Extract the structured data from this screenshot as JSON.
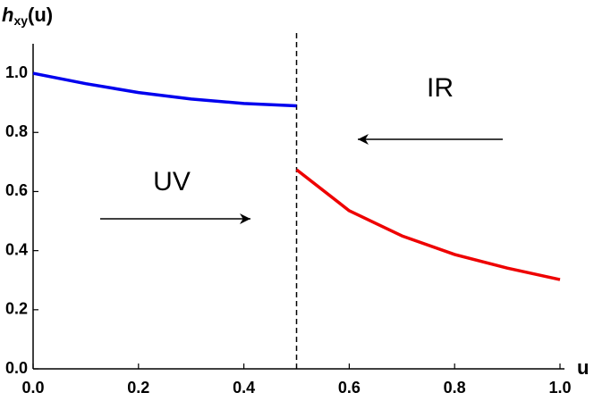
{
  "chart_data": {
    "type": "line",
    "ylabel": {
      "main": "h",
      "sub": "xy",
      "rest": "(u)"
    },
    "xlabel": "u",
    "annotations": [
      "UV",
      "IR"
    ],
    "xlim": [
      0,
      1.0
    ],
    "ylim": [
      0,
      1.1
    ],
    "xticks": [
      {
        "value": 0,
        "label": "0.0"
      },
      0.2,
      0.4,
      0.6,
      0.8,
      {
        "value": 1,
        "label": "1.0"
      }
    ],
    "yticks": [
      {
        "value": 0,
        "label": "0.0"
      },
      0.2,
      0.4,
      0.6,
      0.8,
      {
        "value": 1,
        "label": "1.0"
      }
    ],
    "vlines": [
      0.5
    ],
    "series": [
      {
        "color": "#0000ee",
        "x": [
          0,
          0.1,
          0.2,
          0.3,
          0.4,
          0.5
        ],
        "values": [
          1.0,
          0.965,
          0.935,
          0.913,
          0.898,
          0.89
        ]
      },
      {
        "color": "#ee0000",
        "x": [
          0.5,
          0.6,
          0.7,
          0.8,
          0.9,
          1.0
        ],
        "values": [
          0.674,
          0.535,
          0.45,
          0.387,
          0.341,
          0.302
        ]
      }
    ]
  }
}
